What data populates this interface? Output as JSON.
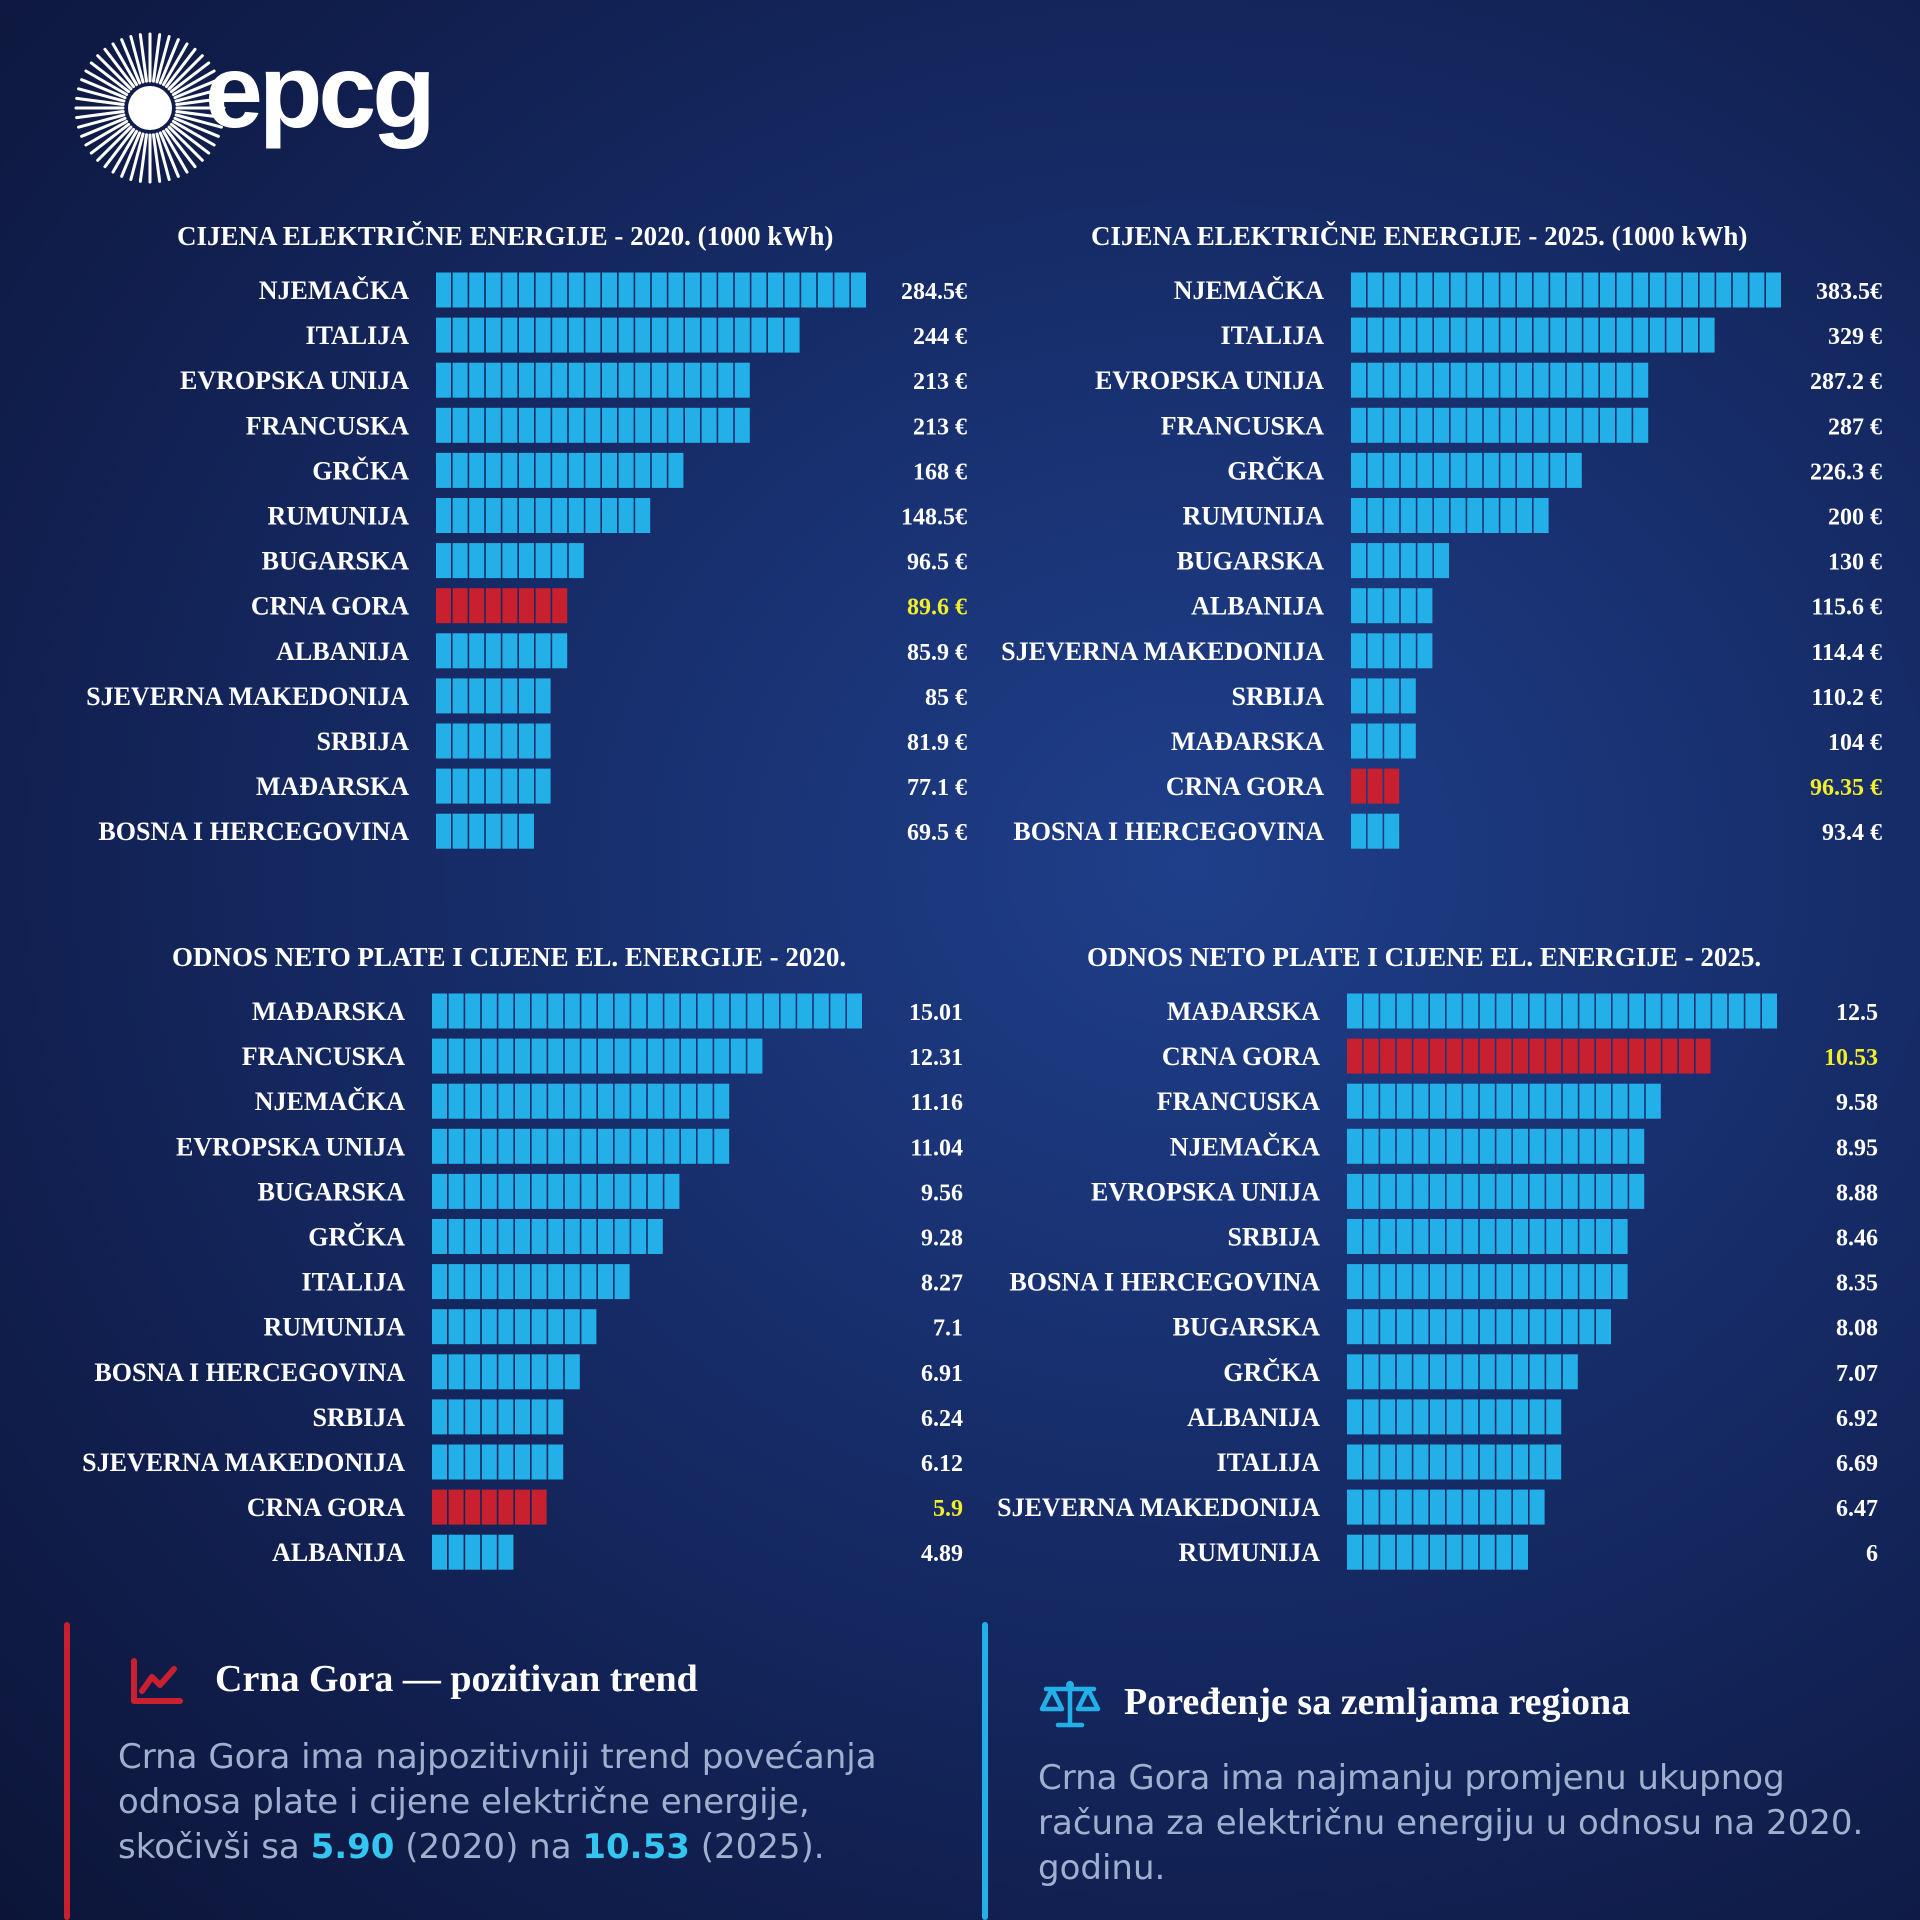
{
  "brand": {
    "name": "epcg"
  },
  "colors": {
    "bar": "#23b0e8",
    "bar_highlight": "#c8202e",
    "value_highlight": "#f2ee2a",
    "accent_red": "#c8202e",
    "accent_blue": "#23b0e8"
  },
  "chart_data": [
    {
      "type": "bar",
      "orientation": "horizontal",
      "title": "CIJENA ELEKTRIČNE ENERGIJE - 2020. (1000 kWh)",
      "categories": [
        "NJEMAČKA",
        "ITALIJA",
        "EVROPSKA UNIJA",
        "FRANCUSKA",
        "GRČKA",
        "RUMUNIJA",
        "BUGARSKA",
        "CRNA GORA",
        "ALBANIJA",
        "SJEVERNA MAKEDONIJA",
        "SRBIJA",
        "MAĐARSKA",
        "BOSNA I HERCEGOVINA"
      ],
      "values": [
        284.5,
        244,
        213,
        213,
        168,
        148.5,
        96.5,
        89.6,
        85.9,
        85,
        81.9,
        77.1,
        69.5
      ],
      "value_labels": [
        "284.5€",
        "244 €",
        "213 €",
        "213 €",
        "168 €",
        "148.5€",
        "96.5 €",
        "89.6 €",
        "85.9 €",
        "85 €",
        "81.9 €",
        "77.1 €",
        "69.5 €"
      ],
      "segments": [
        26,
        22,
        19,
        19,
        15,
        13,
        9,
        8,
        8,
        7,
        7,
        7,
        6
      ],
      "highlight": "CRNA GORA"
    },
    {
      "type": "bar",
      "orientation": "horizontal",
      "title": "CIJENA ELEKTRIČNE ENERGIJE - 2025. (1000 kWh)",
      "categories": [
        "NJEMAČKA",
        "ITALIJA",
        "EVROPSKA UNIJA",
        "FRANCUSKA",
        "GRČKA",
        "RUMUNIJA",
        "BUGARSKA",
        "ALBANIJA",
        "SJEVERNA MAKEDONIJA",
        "SRBIJA",
        "MAĐARSKA",
        "CRNA GORA",
        "BOSNA I HERCEGOVINA"
      ],
      "values": [
        383.5,
        329,
        287.2,
        287,
        226.3,
        200,
        130,
        115.6,
        114.4,
        110.2,
        104,
        96.35,
        93.4
      ],
      "value_labels": [
        "383.5€",
        "329 €",
        "287.2 €",
        "287 €",
        "226.3 €",
        "200 €",
        "130 €",
        "115.6 €",
        "114.4 €",
        "110.2 €",
        "104 €",
        "96.35 €",
        "93.4 €"
      ],
      "segments": [
        26,
        22,
        18,
        18,
        14,
        12,
        6,
        5,
        5,
        4,
        4,
        3,
        3
      ],
      "highlight": "CRNA GORA"
    },
    {
      "type": "bar",
      "orientation": "horizontal",
      "title": "ODNOS NETO PLATE I CIJENE EL. ENERGIJE - 2020.",
      "categories": [
        "MAĐARSKA",
        "FRANCUSKA",
        "NJEMAČKA",
        "EVROPSKA UNIJA",
        "BUGARSKA",
        "GRČKA",
        "ITALIJA",
        "RUMUNIJA",
        "BOSNA I HERCEGOVINA",
        "SRBIJA",
        "SJEVERNA MAKEDONIJA",
        "CRNA GORA",
        "ALBANIJA"
      ],
      "values": [
        15.01,
        12.31,
        11.16,
        11.04,
        9.56,
        9.28,
        8.27,
        7.1,
        6.91,
        6.24,
        6.12,
        5.9,
        4.89
      ],
      "value_labels": [
        "15.01",
        "12.31",
        "11.16",
        "11.04",
        "9.56",
        "9.28",
        "8.27",
        "7.1",
        "6.91",
        "6.24",
        "6.12",
        "5.9",
        "4.89"
      ],
      "segments": [
        26,
        20,
        18,
        18,
        15,
        14,
        12,
        10,
        9,
        8,
        8,
        7,
        5
      ],
      "highlight": "CRNA GORA"
    },
    {
      "type": "bar",
      "orientation": "horizontal",
      "title": "ODNOS NETO PLATE I CIJENE EL. ENERGIJE - 2025.",
      "categories": [
        "MAĐARSKA",
        "CRNA GORA",
        "FRANCUSKA",
        "NJEMAČKA",
        "EVROPSKA UNIJA",
        "SRBIJA",
        "BOSNA I HERCEGOVINA",
        "BUGARSKA",
        "GRČKA",
        "ALBANIJA",
        "ITALIJA",
        "SJEVERNA MAKEDONIJA",
        "RUMUNIJA"
      ],
      "values": [
        12.5,
        10.53,
        9.58,
        8.95,
        8.88,
        8.46,
        8.35,
        8.08,
        7.07,
        6.92,
        6.69,
        6.47,
        6
      ],
      "value_labels": [
        "12.5",
        "10.53",
        "9.58",
        "8.95",
        "8.88",
        "8.46",
        "8.35",
        "8.08",
        "7.07",
        "6.92",
        "6.69",
        "6.47",
        "6"
      ],
      "segments": [
        26,
        22,
        19,
        18,
        18,
        17,
        17,
        16,
        14,
        13,
        13,
        12,
        11
      ],
      "highlight": "CRNA GORA"
    }
  ],
  "info_left": {
    "icon": "trend-up-icon",
    "title": "Crna Gora — pozitivan trend",
    "text_1": "Crna Gora ima najpozitivniji trend povećanja odnosa plate i cijene električne energije, skočivši sa ",
    "num_1": "5.90",
    "text_2": " (2020) na ",
    "num_2": "10.53",
    "text_3": " (2025)."
  },
  "info_right": {
    "icon": "scales-icon",
    "title": "Poređenje sa zemljama regiona",
    "text": "Crna Gora ima najmanju promjenu ukupnog računa za električnu energiju u odnosu na 2020. godinu."
  }
}
